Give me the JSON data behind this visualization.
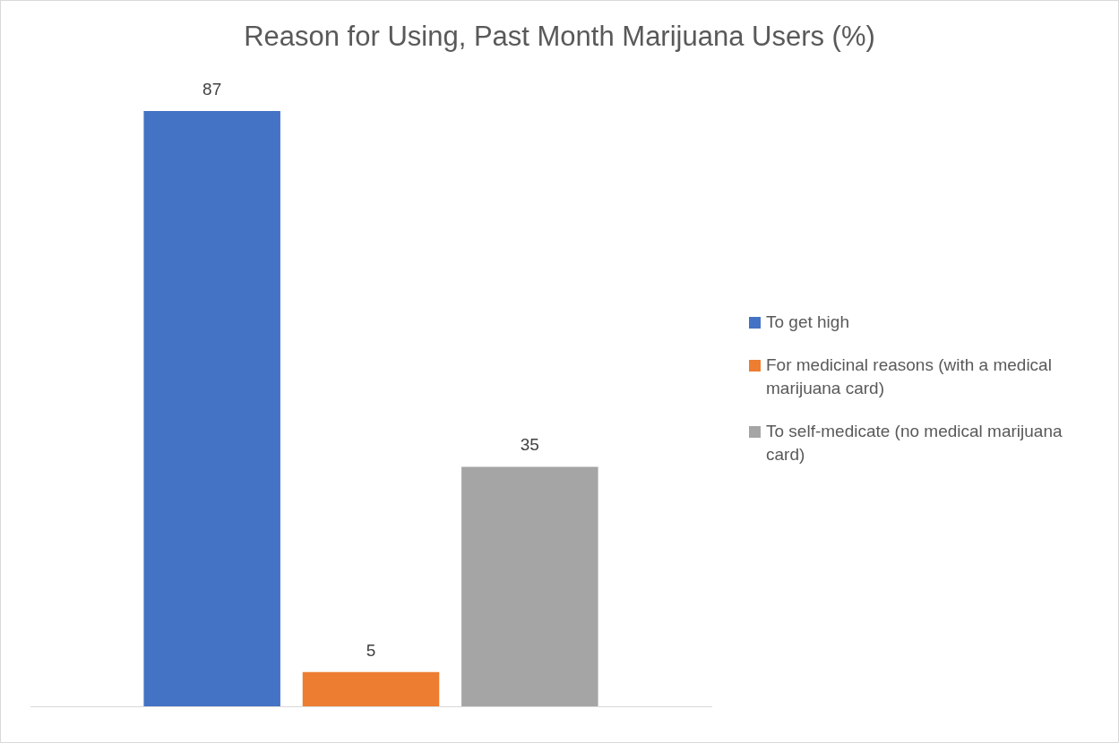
{
  "chart_data": {
    "type": "bar",
    "title": "Reason for Using, Past Month Marijuana Users (%)",
    "categories": [
      null
    ],
    "series": [
      {
        "name": "To get high",
        "color": "#4472c4",
        "values": [
          87
        ]
      },
      {
        "name": "For medicinal reasons (with a medical marijuana card)",
        "color": "#ed7d31",
        "values": [
          5
        ]
      },
      {
        "name": "To self-medicate (no medical marijuana card)",
        "color": "#a5a5a5",
        "values": [
          35
        ]
      }
    ],
    "data_labels": true,
    "legend": "right"
  }
}
